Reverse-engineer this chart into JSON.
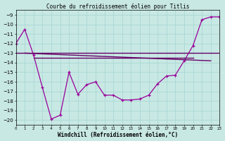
{
  "title": "Courbe du refroidissement éolien pour Titlis",
  "xlabel": "Windchill (Refroidissement éolien,°C)",
  "background_color": "#c8e8e4",
  "grid_color": "#aad8d4",
  "line_color": "#990099",
  "line_color2": "#660066",
  "xlim": [
    0,
    23
  ],
  "ylim": [
    -20.5,
    -8.5
  ],
  "yticks": [
    -9,
    -10,
    -11,
    -12,
    -13,
    -14,
    -15,
    -16,
    -17,
    -18,
    -19,
    -20
  ],
  "xticks": [
    0,
    1,
    2,
    3,
    4,
    5,
    6,
    7,
    8,
    9,
    10,
    11,
    12,
    13,
    14,
    15,
    16,
    17,
    18,
    19,
    20,
    21,
    22,
    23
  ],
  "line1_x": [
    0,
    1,
    2,
    3,
    4,
    5,
    6,
    7,
    8,
    9,
    10,
    11,
    12,
    13,
    14,
    15,
    16,
    17,
    18,
    19,
    20,
    21,
    22,
    23
  ],
  "line1_y": [
    -12.0,
    -10.5,
    -13.2,
    -16.6,
    -19.9,
    -19.5,
    -15.0,
    -17.3,
    -16.3,
    -16.0,
    -17.4,
    -17.4,
    -17.9,
    -17.9,
    -17.8,
    -17.4,
    -16.2,
    -15.4,
    -15.3,
    -13.8,
    -12.2,
    -9.5,
    -9.2,
    -9.2
  ],
  "line2_x": [
    0,
    23
  ],
  "line2_y": [
    -13.0,
    -13.0
  ],
  "line3_x": [
    1,
    22
  ],
  "line3_y": [
    -13.0,
    -13.8
  ],
  "line4_x": [
    2,
    20
  ],
  "line4_y": [
    -13.5,
    -13.5
  ]
}
